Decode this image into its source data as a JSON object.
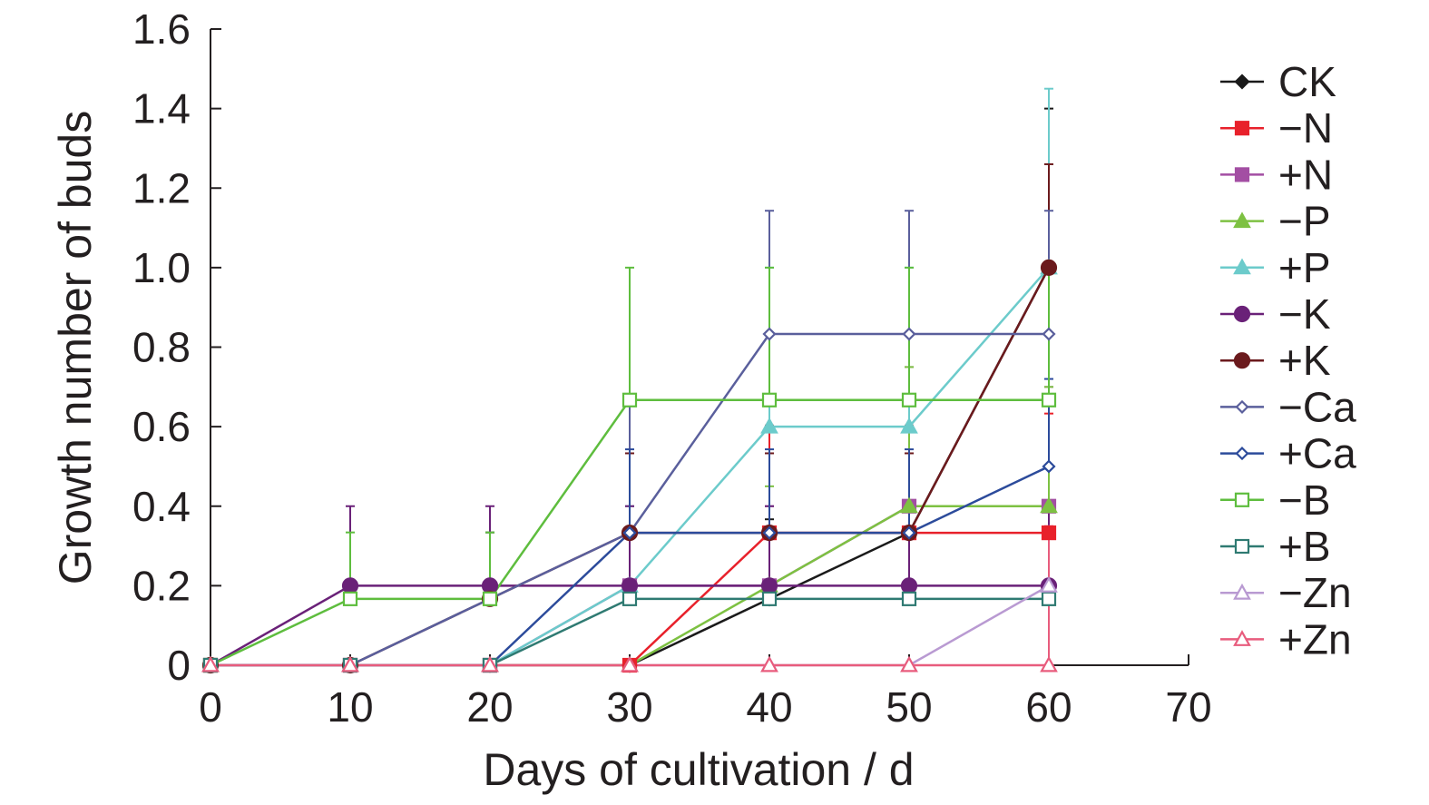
{
  "chart_data": {
    "type": "line",
    "xlabel": "Days of cultivation / d",
    "ylabel": "Growth number of buds",
    "xlim": [
      0,
      70
    ],
    "ylim": [
      0,
      1.6
    ],
    "xticks": [
      "0",
      "10",
      "20",
      "30",
      "40",
      "50",
      "60",
      "70"
    ],
    "yticks": [
      "0",
      "0.2",
      "0.4",
      "0.6",
      "0.8",
      "1.0",
      "1.2",
      "1.4",
      "1.6"
    ],
    "x": [
      0,
      10,
      20,
      30,
      40,
      50,
      60
    ],
    "grid": false,
    "legend_position": "right",
    "series": [
      {
        "name": "CK",
        "color": "#1a1a1a",
        "marker": "diamond",
        "filled": true,
        "values": [
          0,
          0,
          0,
          0,
          0.167,
          0.333,
          1.0
        ],
        "error": [
          0,
          0,
          0,
          0,
          0.2,
          0.33,
          0.4
        ]
      },
      {
        "name": "−N",
        "color": "#e8212b",
        "marker": "square",
        "filled": true,
        "values": [
          0,
          0,
          0,
          0,
          0.333,
          0.333,
          0.333
        ],
        "error": [
          0,
          0,
          0,
          0,
          0.27,
          0.27,
          0.3
        ]
      },
      {
        "name": "+N",
        "color": "#a34ea3",
        "marker": "square",
        "filled": true,
        "values": [
          0,
          0,
          0,
          0.2,
          0.2,
          0.4,
          0.4
        ],
        "error": [
          0,
          0,
          0,
          0.2,
          0.2,
          0.35,
          0.3
        ]
      },
      {
        "name": "−P",
        "color": "#7dc142",
        "marker": "triangle",
        "filled": true,
        "values": [
          0,
          0,
          0,
          0,
          0.2,
          0.4,
          0.4
        ],
        "error": [
          0,
          0,
          0,
          0,
          0.25,
          0.35,
          0.3
        ]
      },
      {
        "name": "+P",
        "color": "#6ccbcb",
        "marker": "triangle",
        "filled": true,
        "values": [
          0,
          0,
          0,
          0.2,
          0.6,
          0.6,
          1.0
        ],
        "error": [
          0,
          0,
          0,
          0.2,
          0.4,
          0.4,
          0.45
        ]
      },
      {
        "name": "−K",
        "color": "#6a2178",
        "marker": "circle",
        "filled": true,
        "values": [
          0,
          0.2,
          0.2,
          0.2,
          0.2,
          0.2,
          0.2
        ],
        "error": [
          0,
          0.2,
          0.2,
          0.2,
          0.2,
          0.2,
          0.2
        ]
      },
      {
        "name": "+K",
        "color": "#6b1a1d",
        "marker": "circle",
        "filled": true,
        "values": [
          0,
          0,
          0.167,
          0.333,
          0.333,
          0.333,
          1.0
        ],
        "error": [
          0,
          0,
          0.167,
          0.2,
          0.2,
          0.2,
          0.26
        ]
      },
      {
        "name": "−Ca",
        "color": "#5a5f9c",
        "marker": "diamond",
        "filled": false,
        "values": [
          0,
          0,
          0.167,
          0.333,
          0.833,
          0.833,
          0.833
        ],
        "error": [
          0,
          0,
          0.167,
          0.333,
          0.31,
          0.31,
          0.31
        ]
      },
      {
        "name": "+Ca",
        "color": "#2c4b9b",
        "marker": "diamond",
        "filled": false,
        "values": [
          0,
          0,
          0,
          0.333,
          0.333,
          0.333,
          0.5
        ],
        "error": [
          0,
          0,
          0,
          0.21,
          0.21,
          0.21,
          0.22
        ]
      },
      {
        "name": "−B",
        "color": "#5ebd3e",
        "marker": "square",
        "filled": false,
        "values": [
          0,
          0.167,
          0.167,
          0.667,
          0.667,
          0.667,
          0.667
        ],
        "error": [
          0,
          0.167,
          0.167,
          0.333,
          0.333,
          0.333,
          0.333
        ]
      },
      {
        "name": "+B",
        "color": "#2f7a72",
        "marker": "square",
        "filled": false,
        "values": [
          0,
          0,
          0,
          0.167,
          0.167,
          0.167,
          0.167
        ],
        "error": [
          0,
          0,
          0,
          0,
          0,
          0,
          0
        ]
      },
      {
        "name": "−Zn",
        "color": "#b99ad2",
        "marker": "triangle",
        "filled": false,
        "values": [
          0,
          0,
          0,
          0,
          0,
          0,
          0.2
        ],
        "error": [
          0,
          0,
          0,
          0,
          0,
          0,
          0
        ]
      },
      {
        "name": "+Zn",
        "color": "#e85c7d",
        "marker": "triangle",
        "filled": false,
        "values": [
          0,
          0,
          0,
          0,
          0,
          0,
          0
        ],
        "error": [
          0,
          0,
          0,
          0,
          0,
          0,
          0.35
        ]
      }
    ]
  }
}
